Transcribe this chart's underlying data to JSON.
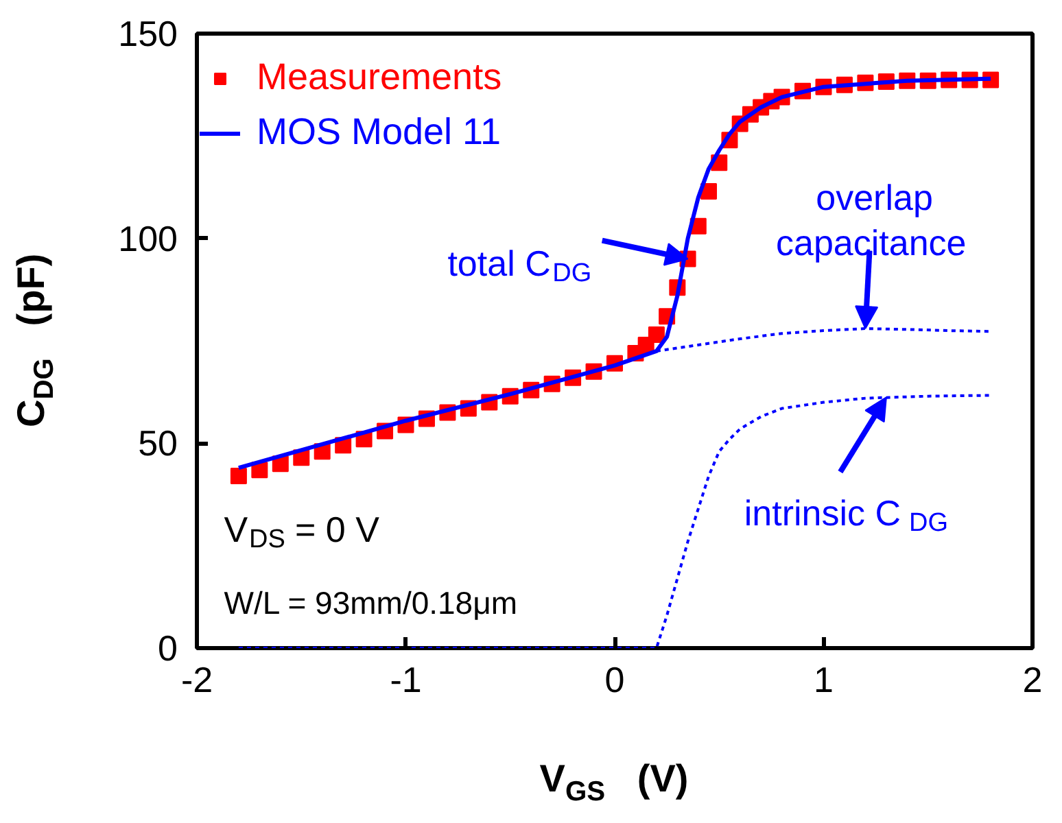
{
  "chart_data": {
    "type": "line",
    "xlabel": "V$_{GS}$   (V)",
    "ylabel": "C$_{DG}$   (pF)",
    "xlim": [
      -2,
      2
    ],
    "ylim": [
      0,
      150
    ],
    "xticks": [
      -2,
      -1,
      0,
      1,
      2
    ],
    "yticks": [
      0,
      50,
      100,
      150
    ],
    "grid": false,
    "legend": "top left",
    "series": [
      {
        "name": "Measurements",
        "type": "scatter",
        "marker": "square",
        "color": "#ff0000",
        "x": [
          -1.8,
          -1.7,
          -1.6,
          -1.5,
          -1.4,
          -1.3,
          -1.2,
          -1.1,
          -1.0,
          -0.9,
          -0.8,
          -0.7,
          -0.6,
          -0.5,
          -0.4,
          -0.3,
          -0.2,
          -0.1,
          0,
          0.1,
          0.15,
          0.2,
          0.25,
          0.3,
          0.35,
          0.4,
          0.45,
          0.5,
          0.55,
          0.6,
          0.65,
          0.7,
          0.75,
          0.8,
          0.9,
          1.0,
          1.1,
          1.2,
          1.3,
          1.4,
          1.5,
          1.6,
          1.7,
          1.8
        ],
        "values": [
          42,
          43.5,
          45,
          46.5,
          48,
          49.5,
          51,
          53,
          54.5,
          56,
          57.5,
          58.5,
          60,
          61.5,
          63,
          64.5,
          66,
          67.5,
          69.5,
          72,
          74,
          76.5,
          81,
          88,
          95,
          103,
          111.5,
          118.5,
          124,
          128,
          130.3,
          132,
          133.5,
          134.5,
          136,
          137,
          137.5,
          138,
          138.3,
          138.5,
          138.5,
          138.7,
          138.7,
          138.7
        ]
      },
      {
        "name": "MOS Model 11",
        "line_style": "solid",
        "color": "#0000ff",
        "x": [
          -1.8,
          -1.0,
          -0.5,
          0,
          0.2,
          0.25,
          0.3,
          0.35,
          0.4,
          0.45,
          0.5,
          0.55,
          0.6,
          0.7,
          0.8,
          1.0,
          1.4,
          1.8
        ],
        "values": [
          44,
          55.5,
          62,
          69,
          72.5,
          76,
          86,
          100,
          110,
          117,
          121.5,
          125.5,
          128.5,
          132,
          134.5,
          137,
          138.5,
          139
        ]
      },
      {
        "line_style": "dashed",
        "color": "#0000ff",
        "x": [
          0.2,
          0.4,
          0.6,
          0.8,
          1.0,
          1.2,
          1.4,
          1.6,
          1.8
        ],
        "values": [
          72.5,
          74,
          75.5,
          76.8,
          77.5,
          78,
          77.8,
          77.5,
          77.3
        ]
      },
      {
        "line_style": "dashed",
        "color": "#0000ff",
        "x": [
          -1.8,
          0.2,
          0.25,
          0.3,
          0.35,
          0.4,
          0.45,
          0.5,
          0.55,
          0.6,
          0.7,
          0.8,
          1.0,
          1.2,
          1.5,
          1.8
        ],
        "values": [
          0,
          0,
          8,
          17,
          26,
          34,
          42,
          48,
          51,
          53.5,
          56.5,
          58.5,
          60,
          61,
          61.5,
          61.7
        ]
      }
    ],
    "annotations": [
      {
        "text": "total C$_{DG}$",
        "x": 0.35,
        "y": 95
      },
      {
        "text": "overlap capacitance",
        "x": 1.2,
        "y": 78
      },
      {
        "text": "intrinsic C$_{DG}$",
        "x": 1.3,
        "y": 61.2
      },
      "V$_{DS}$ = 0 V",
      "W/L = 93mm/0.18μm"
    ]
  }
}
